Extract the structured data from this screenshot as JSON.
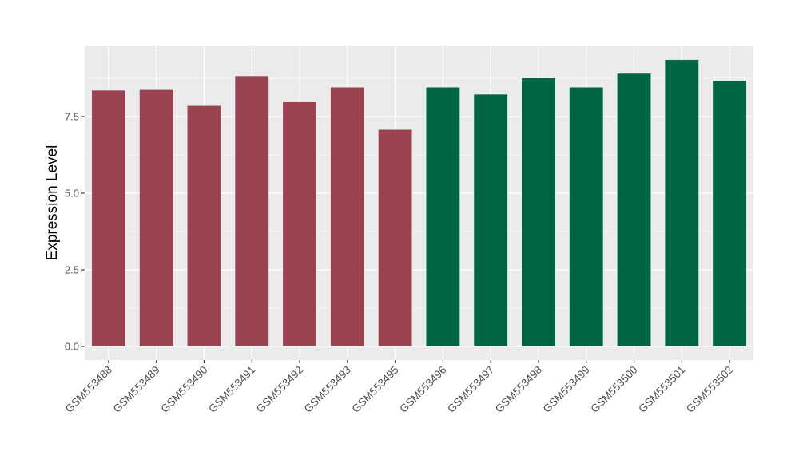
{
  "chart_data": {
    "type": "bar",
    "title": "",
    "xlabel": "",
    "ylabel": "Expression Level",
    "ylim": [
      -0.35,
      9.5
    ],
    "yticks": [
      0.0,
      2.5,
      5.0,
      7.5
    ],
    "ytick_labels": [
      "0.0",
      "2.5",
      "5.0",
      "7.5"
    ],
    "grid": true,
    "legend": "none",
    "categories": [
      "GSM553488",
      "GSM553489",
      "GSM553490",
      "GSM553491",
      "GSM553492",
      "GSM553493",
      "GSM553495",
      "GSM553496",
      "GSM553497",
      "GSM553498",
      "GSM553499",
      "GSM553500",
      "GSM553501",
      "GSM553502"
    ],
    "values": [
      8.35,
      8.37,
      7.85,
      8.82,
      7.97,
      8.45,
      7.07,
      8.45,
      8.22,
      8.75,
      8.45,
      8.9,
      9.35,
      8.67
    ],
    "group_colors": [
      "#9b4250",
      "#9b4250",
      "#9b4250",
      "#9b4250",
      "#9b4250",
      "#9b4250",
      "#9b4250",
      "#006545",
      "#006545",
      "#006545",
      "#006545",
      "#006545",
      "#006545",
      "#006545"
    ],
    "panel_background": "#ebebeb",
    "gridline_color": "#ffffff"
  }
}
